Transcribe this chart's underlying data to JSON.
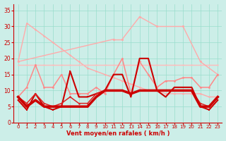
{
  "background_color": "#cceee8",
  "grid_color": "#99ddcc",
  "xlabel": "Vent moyen/en rafales ( km/h )",
  "x": [
    0,
    1,
    2,
    3,
    4,
    5,
    6,
    7,
    8,
    9,
    10,
    11,
    12,
    13,
    14,
    15,
    16,
    17,
    18,
    19,
    20,
    21,
    22,
    23
  ],
  "ylim": [
    0,
    37
  ],
  "xlim": [
    -0.5,
    23.5
  ],
  "yticks": [
    0,
    5,
    10,
    15,
    20,
    25,
    30,
    35
  ],
  "series": [
    {
      "y": [
        19,
        31,
        29,
        27,
        25,
        23,
        21,
        19,
        17,
        16,
        15,
        14,
        13,
        12,
        11,
        10,
        10,
        9,
        9,
        9,
        9,
        9,
        8,
        8
      ],
      "color": "#ffaaaa",
      "lw": 1.0,
      "marker": "o",
      "ms": 1.8
    },
    {
      "y": [
        18,
        18,
        18,
        18,
        18,
        18,
        18,
        18,
        18,
        18,
        18,
        18,
        18,
        18,
        18,
        18,
        18,
        18,
        18,
        18,
        18,
        18,
        18,
        18
      ],
      "color": "#ffbbbb",
      "lw": 1.0,
      "marker": "o",
      "ms": 1.5
    },
    {
      "y": [
        19,
        null,
        null,
        null,
        null,
        null,
        null,
        null,
        null,
        null,
        null,
        26,
        26,
        null,
        33,
        30,
        30,
        null,
        null,
        30,
        30,
        19,
        12,
        15
      ],
      "color": "#ffaaaa",
      "lw": 1.0,
      "marker": "o",
      "ms": 2.0
    },
    {
      "y": [
        8,
        11,
        18,
        11,
        11,
        15,
        9,
        9,
        9,
        11,
        9,
        15,
        20,
        9,
        19,
        15,
        11,
        13,
        13,
        14,
        14,
        11,
        11,
        15
      ],
      "color": "#ff8888",
      "lw": 1.1,
      "marker": "o",
      "ms": 2.0
    },
    {
      "y": [
        7,
        4,
        9,
        5,
        4,
        5,
        16,
        8,
        8,
        9,
        10,
        15,
        15,
        8,
        20,
        20,
        10,
        8,
        11,
        11,
        11,
        5,
        4,
        7
      ],
      "color": "#cc0000",
      "lw": 1.5,
      "marker": "s",
      "ms": 2.0
    },
    {
      "y": [
        8,
        6,
        9,
        6,
        5,
        6,
        8,
        6,
        6,
        9,
        10,
        10,
        10,
        9,
        10,
        10,
        10,
        10,
        10,
        10,
        10,
        6,
        5,
        8
      ],
      "color": "#dd2222",
      "lw": 1.1,
      "marker": "o",
      "ms": 1.8
    },
    {
      "y": [
        8,
        5,
        7,
        5,
        5,
        5,
        5,
        5,
        5,
        8,
        10,
        10,
        10,
        9,
        10,
        10,
        10,
        10,
        10,
        10,
        10,
        5,
        5,
        8
      ],
      "color": "#cc0000",
      "lw": 2.5,
      "marker": "o",
      "ms": 1.5
    }
  ]
}
